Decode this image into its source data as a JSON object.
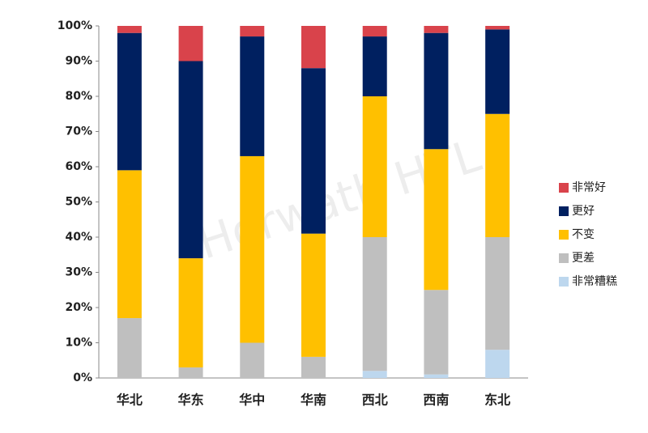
{
  "chart_data": {
    "type": "stacked-bar",
    "watermark": "Horwath HTL",
    "categories": [
      "华北",
      "华东",
      "华中",
      "华南",
      "西北",
      "西南",
      "东北"
    ],
    "series": [
      {
        "name": "非常糟糕",
        "color": "#bdd7ee",
        "values": [
          0,
          0,
          0,
          0,
          2,
          1,
          8
        ]
      },
      {
        "name": "更差",
        "color": "#bfbfbf",
        "values": [
          17,
          3,
          10,
          6,
          38,
          24,
          32
        ]
      },
      {
        "name": "不变",
        "color": "#ffc000",
        "values": [
          42,
          31,
          53,
          35,
          40,
          40,
          35
        ]
      },
      {
        "name": "更好",
        "color": "#002060",
        "values": [
          39,
          56,
          34,
          47,
          17,
          33,
          24
        ]
      },
      {
        "name": "非常好",
        "color": "#d9434b",
        "values": [
          2,
          10,
          3,
          12,
          3,
          2,
          1
        ]
      }
    ],
    "ylim": [
      0,
      100
    ],
    "yticks": [
      {
        "value": 0,
        "label": "0%"
      },
      {
        "value": 10,
        "label": "10%"
      },
      {
        "value": 20,
        "label": "20%"
      },
      {
        "value": 30,
        "label": "30%"
      },
      {
        "value": 40,
        "label": "40%"
      },
      {
        "value": 50,
        "label": "50%"
      },
      {
        "value": 60,
        "label": "60%"
      },
      {
        "value": 70,
        "label": "70%"
      },
      {
        "value": 80,
        "label": "80%"
      },
      {
        "value": 90,
        "label": "90%"
      },
      {
        "value": 100,
        "label": "100%"
      }
    ],
    "legend": "right"
  }
}
